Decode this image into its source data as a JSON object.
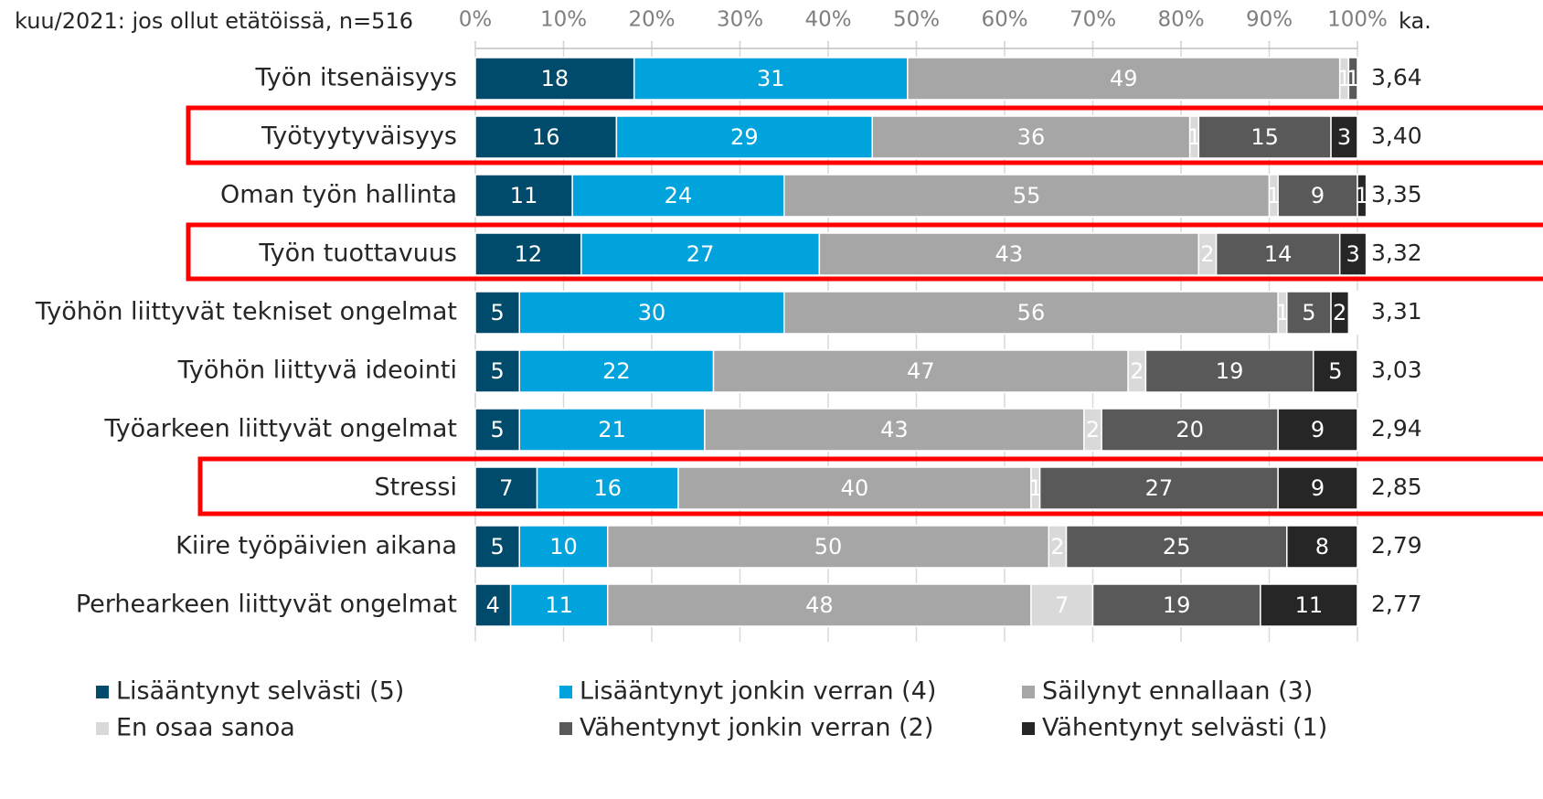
{
  "chart_data": {
    "type": "stacked-bar",
    "subtitle": "kuu/2021: jos ollut etätöissä, n=516",
    "categories": [
      "Työn itsenäisyys",
      "Työtyytyväisyys",
      "Oman työn hallinta",
      "Työn tuottavuus",
      "Työhön liittyvät tekniset ongelmat",
      "Työhön liittyvä ideointi",
      "Työarkeen liittyvät ongelmat",
      "Stressi",
      "Kiire työpäivien aikana",
      "Perhearkeen liittyvät ongelmat"
    ],
    "series": [
      {
        "name": "Lisääntynyt selvästi (5)",
        "color": "#004b6b",
        "values": [
          18,
          16,
          11,
          12,
          5,
          5,
          5,
          7,
          5,
          4
        ]
      },
      {
        "name": "Lisääntynyt jonkin verran (4)",
        "color": "#00a3dc",
        "values": [
          31,
          29,
          24,
          27,
          30,
          22,
          21,
          16,
          10,
          11
        ]
      },
      {
        "name": "Säilynyt ennallaan (3)",
        "color": "#a6a6a6",
        "values": [
          49,
          36,
          55,
          43,
          56,
          47,
          43,
          40,
          50,
          48
        ]
      },
      {
        "name": "En osaa sanoa",
        "color": "#d9d9d9",
        "values": [
          1,
          1,
          1,
          2,
          1,
          2,
          2,
          1,
          2,
          7
        ]
      },
      {
        "name": "Vähentynyt jonkin verran (2)",
        "color": "#595959",
        "values": [
          1,
          15,
          9,
          14,
          5,
          19,
          20,
          27,
          25,
          19
        ]
      },
      {
        "name": "Vähentynyt selvästi (1)",
        "color": "#262626",
        "values": [
          0,
          3,
          1,
          3,
          2,
          5,
          9,
          9,
          8,
          11
        ]
      }
    ],
    "means": {
      "name": "ka.",
      "values": [
        3.64,
        3.4,
        3.35,
        3.32,
        3.31,
        3.03,
        2.94,
        2.85,
        2.79,
        2.77
      ],
      "value_labels": [
        "3,64",
        "3,40",
        "3,35",
        "3,32",
        "3,31",
        "3,03",
        "2,94",
        "2,85",
        "2,79",
        "2,77"
      ]
    },
    "xlim": [
      0,
      100
    ],
    "xticks": [
      {
        "value": 0,
        "label": "0%"
      },
      {
        "value": 10,
        "label": "10%"
      },
      {
        "value": 20,
        "label": "20%"
      },
      {
        "value": 30,
        "label": "30%"
      },
      {
        "value": 40,
        "label": "40%"
      },
      {
        "value": 50,
        "label": "50%"
      },
      {
        "value": 60,
        "label": "60%"
      },
      {
        "value": 70,
        "label": "70%"
      },
      {
        "value": 80,
        "label": "80%"
      },
      {
        "value": 90,
        "label": "90%"
      },
      {
        "value": 100,
        "label": "100%"
      }
    ],
    "grid": true
  }
}
